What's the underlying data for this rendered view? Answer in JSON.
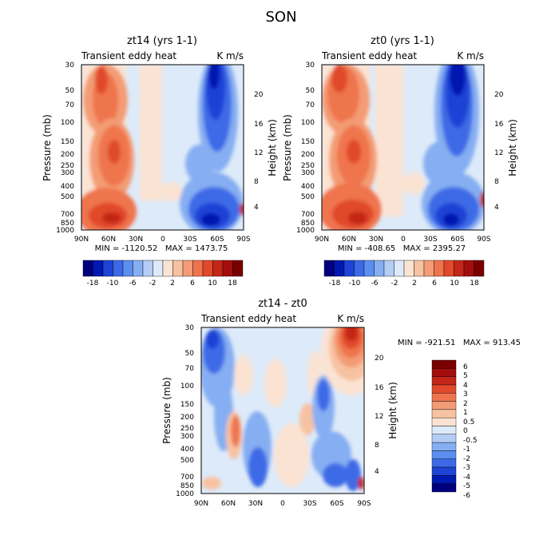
{
  "figure_title": "SON",
  "chart_data": [
    {
      "type": "heatmap",
      "title": "zt14 (yrs 1-1)",
      "subtitle_left": "Transient eddy heat",
      "subtitle_right": "K m/s",
      "xlabel": "",
      "ylabel": "Pressure (mb)",
      "ylabel_right": "Height (km)",
      "x_ticks": [
        "90N",
        "60N",
        "30N",
        "0",
        "30S",
        "60S",
        "90S"
      ],
      "y_ticks": [
        "30",
        "50",
        "70",
        "100",
        "150",
        "200",
        "250",
        "300",
        "400",
        "500",
        "700",
        "850",
        "1000"
      ],
      "y_ticks_right": [
        "20",
        "16",
        "12",
        "8",
        "4"
      ],
      "stats": "MIN = -1120.52   MAX = 1473.75",
      "colorbar": {
        "orientation": "horizontal",
        "tick_labels": [
          "-18",
          "-10",
          "-6",
          "-2",
          "2",
          "6",
          "10",
          "18"
        ],
        "colors": [
          "#00007f",
          "#0019b0",
          "#1f43d5",
          "#3c6ae6",
          "#5c8ef0",
          "#86aef2",
          "#b4cdf5",
          "#ddeaf9",
          "#fbe3d3",
          "#f7c2a2",
          "#f39c75",
          "#ef744e",
          "#e0492c",
          "#c42618",
          "#a30e0c",
          "#7a0000"
        ]
      }
    },
    {
      "type": "heatmap",
      "title": "zt0 (yrs 1-1)",
      "subtitle_left": "Transient eddy heat",
      "subtitle_right": "K m/s",
      "xlabel": "",
      "ylabel": "Pressure (mb)",
      "ylabel_right": "Height (km)",
      "x_ticks": [
        "90N",
        "60N",
        "30N",
        "0",
        "30S",
        "60S",
        "90S"
      ],
      "y_ticks": [
        "30",
        "50",
        "70",
        "100",
        "150",
        "200",
        "250",
        "300",
        "400",
        "500",
        "700",
        "850",
        "1000"
      ],
      "y_ticks_right": [
        "20",
        "16",
        "12",
        "8",
        "4"
      ],
      "stats": "MIN = -408.65   MAX = 2395.27",
      "colorbar": {
        "orientation": "horizontal",
        "tick_labels": [
          "-18",
          "-10",
          "-6",
          "-2",
          "2",
          "6",
          "10",
          "18"
        ],
        "colors": [
          "#00007f",
          "#0019b0",
          "#1f43d5",
          "#3c6ae6",
          "#5c8ef0",
          "#86aef2",
          "#b4cdf5",
          "#ddeaf9",
          "#fbe3d3",
          "#f7c2a2",
          "#f39c75",
          "#ef744e",
          "#e0492c",
          "#c42618",
          "#a30e0c",
          "#7a0000"
        ]
      }
    },
    {
      "type": "heatmap",
      "title": "zt14 - zt0",
      "subtitle_left": "Transient eddy heat",
      "subtitle_right": "K m/s",
      "xlabel": "",
      "ylabel": "Pressure (mb)",
      "ylabel_right": "Height (km)",
      "x_ticks": [
        "90N",
        "60N",
        "30N",
        "0",
        "30S",
        "60S",
        "90S"
      ],
      "y_ticks": [
        "30",
        "50",
        "70",
        "100",
        "150",
        "200",
        "250",
        "300",
        "400",
        "500",
        "700",
        "850",
        "1000"
      ],
      "y_ticks_right": [
        "20",
        "16",
        "12",
        "8",
        "4"
      ],
      "stats": "MIN = -921.51   MAX = 913.45",
      "colorbar": {
        "orientation": "vertical",
        "tick_labels": [
          "6",
          "5",
          "4",
          "3",
          "2",
          "1",
          "0.5",
          "0",
          "-0.5",
          "-1",
          "-2",
          "-3",
          "-4",
          "-5",
          "-6"
        ],
        "colors": [
          "#7a0000",
          "#a30e0c",
          "#c42618",
          "#e0492c",
          "#ef744e",
          "#f39c75",
          "#f7c2a2",
          "#fbe3d3",
          "#ddeaf9",
          "#b4cdf5",
          "#86aef2",
          "#5c8ef0",
          "#3c6ae6",
          "#1f43d5",
          "#0019b0",
          "#00007f"
        ]
      }
    }
  ]
}
